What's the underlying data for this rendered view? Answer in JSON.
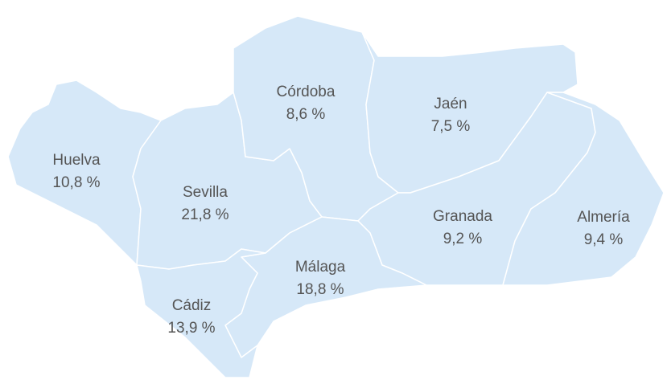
{
  "regions": [
    {
      "name": "Huelva",
      "label": "10,8 %"
    },
    {
      "name": "Sevilla",
      "label": "21,8 %"
    },
    {
      "name": "Córdoba",
      "label": "8,6 %"
    },
    {
      "name": "Jaén",
      "label": "7,5 %"
    },
    {
      "name": "Granada",
      "label": "9,2 %"
    },
    {
      "name": "Almería",
      "label": "9,4 %"
    },
    {
      "name": "Málaga",
      "label": "18,8 %"
    },
    {
      "name": "Cádiz",
      "label": "13,9 %"
    }
  ]
}
